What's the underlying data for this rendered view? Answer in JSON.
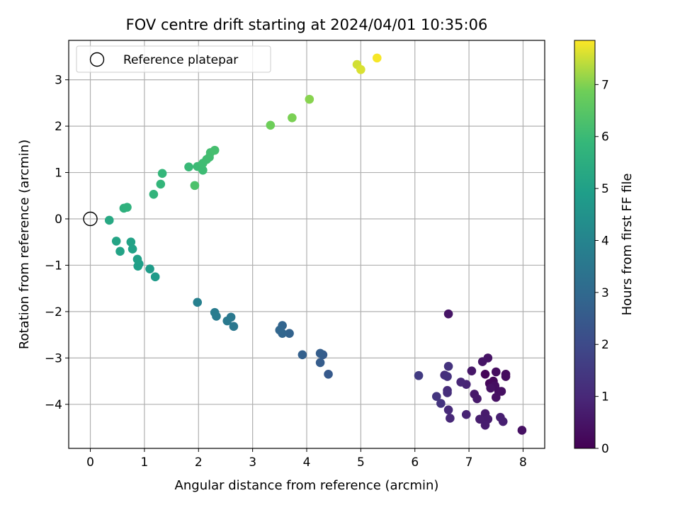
{
  "chart_data": {
    "type": "scatter",
    "title": "FOV centre drift starting at 2024/04/01 10:35:06",
    "xlabel": "Angular distance from reference (arcmin)",
    "ylabel": "Rotation from reference (arcmin)",
    "xlim": [
      -0.4,
      8.4
    ],
    "ylim": [
      -4.95,
      3.85
    ],
    "x_ticks": [
      0,
      1,
      2,
      3,
      4,
      5,
      6,
      7,
      8
    ],
    "y_ticks": [
      -4,
      -3,
      -2,
      -1,
      0,
      1,
      2,
      3
    ],
    "x_tick_labels": [
      "0",
      "1",
      "2",
      "3",
      "4",
      "5",
      "6",
      "7",
      "8"
    ],
    "y_tick_labels": [
      "−4",
      "−3",
      "−2",
      "−1",
      "0",
      "1",
      "2",
      "3"
    ],
    "grid": true,
    "legend": {
      "position": "top-left",
      "entries": [
        {
          "label": "Reference platepar",
          "marker": "open-circle",
          "color": "#000000"
        }
      ]
    },
    "reference_point": {
      "x": 0,
      "y": 0
    },
    "colorbar": {
      "label": "Hours from first FF file",
      "colormap": "viridis",
      "range": [
        0,
        7.85
      ],
      "ticks": [
        0,
        1,
        2,
        3,
        4,
        5,
        6,
        7
      ],
      "tick_labels": [
        "0",
        "1",
        "2",
        "3",
        "4",
        "5",
        "6",
        "7"
      ]
    },
    "points": [
      {
        "x": 7.3,
        "y": -3.35,
        "hours": 0.1
      },
      {
        "x": 7.38,
        "y": -3.55,
        "hours": 0.15
      },
      {
        "x": 7.45,
        "y": -3.5,
        "hours": 0.2
      },
      {
        "x": 7.68,
        "y": -3.35,
        "hours": 0.25
      },
      {
        "x": 7.68,
        "y": -3.4,
        "hours": 0.28
      },
      {
        "x": 7.5,
        "y": -3.3,
        "hours": 0.3
      },
      {
        "x": 7.48,
        "y": -3.6,
        "hours": 0.32
      },
      {
        "x": 7.55,
        "y": -3.72,
        "hours": 0.35
      },
      {
        "x": 7.6,
        "y": -3.72,
        "hours": 0.38
      },
      {
        "x": 7.5,
        "y": -3.85,
        "hours": 0.4
      },
      {
        "x": 7.4,
        "y": -3.65,
        "hours": 0.42
      },
      {
        "x": 7.35,
        "y": -3.0,
        "hours": 0.45
      },
      {
        "x": 7.25,
        "y": -3.08,
        "hours": 0.5
      },
      {
        "x": 7.05,
        "y": -3.28,
        "hours": 0.55
      },
      {
        "x": 7.1,
        "y": -3.78,
        "hours": 0.6
      },
      {
        "x": 7.15,
        "y": -3.88,
        "hours": 0.62
      },
      {
        "x": 7.3,
        "y": -4.2,
        "hours": 0.65
      },
      {
        "x": 7.35,
        "y": -4.32,
        "hours": 0.68
      },
      {
        "x": 7.3,
        "y": -4.45,
        "hours": 0.7
      },
      {
        "x": 7.2,
        "y": -4.32,
        "hours": 0.72
      },
      {
        "x": 7.58,
        "y": -4.28,
        "hours": 0.75
      },
      {
        "x": 7.63,
        "y": -4.37,
        "hours": 0.78
      },
      {
        "x": 7.98,
        "y": -4.56,
        "hours": 0.4
      },
      {
        "x": 6.62,
        "y": -2.05,
        "hours": 0.5
      },
      {
        "x": 6.95,
        "y": -4.22,
        "hours": 0.85
      },
      {
        "x": 6.95,
        "y": -3.57,
        "hours": 0.9
      },
      {
        "x": 6.85,
        "y": -3.52,
        "hours": 0.95
      },
      {
        "x": 6.65,
        "y": -4.3,
        "hours": 1.0
      },
      {
        "x": 6.62,
        "y": -4.12,
        "hours": 1.05
      },
      {
        "x": 6.6,
        "y": -3.7,
        "hours": 1.1
      },
      {
        "x": 6.6,
        "y": -3.75,
        "hours": 1.15
      },
      {
        "x": 6.55,
        "y": -3.37,
        "hours": 1.2
      },
      {
        "x": 6.6,
        "y": -3.4,
        "hours": 1.25
      },
      {
        "x": 6.62,
        "y": -3.18,
        "hours": 1.3
      },
      {
        "x": 6.48,
        "y": -3.98,
        "hours": 1.35
      },
      {
        "x": 6.4,
        "y": -3.83,
        "hours": 1.4
      },
      {
        "x": 6.07,
        "y": -3.38,
        "hours": 1.55
      },
      {
        "x": 4.4,
        "y": -3.35,
        "hours": 2.5
      },
      {
        "x": 4.3,
        "y": -2.93,
        "hours": 2.55
      },
      {
        "x": 4.25,
        "y": -3.1,
        "hours": 2.6
      },
      {
        "x": 4.25,
        "y": -2.9,
        "hours": 2.62
      },
      {
        "x": 3.92,
        "y": -2.93,
        "hours": 2.7
      },
      {
        "x": 3.68,
        "y": -2.47,
        "hours": 2.8
      },
      {
        "x": 3.55,
        "y": -2.3,
        "hours": 2.85
      },
      {
        "x": 3.55,
        "y": -2.47,
        "hours": 2.88
      },
      {
        "x": 3.5,
        "y": -2.4,
        "hours": 2.9
      },
      {
        "x": 2.65,
        "y": -2.32,
        "hours": 3.5
      },
      {
        "x": 2.6,
        "y": -2.12,
        "hours": 3.55
      },
      {
        "x": 2.53,
        "y": -2.2,
        "hours": 3.6
      },
      {
        "x": 2.33,
        "y": -2.1,
        "hours": 3.65
      },
      {
        "x": 2.3,
        "y": -2.02,
        "hours": 3.7
      },
      {
        "x": 1.98,
        "y": -1.8,
        "hours": 3.85
      },
      {
        "x": 1.2,
        "y": -1.25,
        "hours": 4.8
      },
      {
        "x": 1.1,
        "y": -1.08,
        "hours": 4.85
      },
      {
        "x": 0.9,
        "y": -0.97,
        "hours": 4.9
      },
      {
        "x": 0.88,
        "y": -1.02,
        "hours": 4.95
      },
      {
        "x": 0.87,
        "y": -0.87,
        "hours": 5.0
      },
      {
        "x": 0.78,
        "y": -0.65,
        "hours": 5.05
      },
      {
        "x": 0.75,
        "y": -0.5,
        "hours": 5.08
      },
      {
        "x": 0.55,
        "y": -0.7,
        "hours": 5.1
      },
      {
        "x": 0.48,
        "y": -0.48,
        "hours": 5.15
      },
      {
        "x": 0.35,
        "y": -0.03,
        "hours": 5.3
      },
      {
        "x": 0.62,
        "y": 0.23,
        "hours": 5.6
      },
      {
        "x": 0.68,
        "y": 0.25,
        "hours": 5.65
      },
      {
        "x": 1.17,
        "y": 0.53,
        "hours": 5.75
      },
      {
        "x": 1.3,
        "y": 0.75,
        "hours": 5.8
      },
      {
        "x": 1.33,
        "y": 0.98,
        "hours": 5.85
      },
      {
        "x": 1.82,
        "y": 1.12,
        "hours": 5.95
      },
      {
        "x": 1.98,
        "y": 1.13,
        "hours": 6.0
      },
      {
        "x": 2.08,
        "y": 1.05,
        "hours": 6.05
      },
      {
        "x": 2.08,
        "y": 1.2,
        "hours": 6.08
      },
      {
        "x": 2.15,
        "y": 1.28,
        "hours": 6.1
      },
      {
        "x": 2.2,
        "y": 1.33,
        "hours": 6.12
      },
      {
        "x": 2.22,
        "y": 1.43,
        "hours": 6.15
      },
      {
        "x": 2.3,
        "y": 1.48,
        "hours": 6.18
      },
      {
        "x": 1.93,
        "y": 0.72,
        "hours": 6.3
      },
      {
        "x": 3.33,
        "y": 2.02,
        "hours": 6.85
      },
      {
        "x": 3.73,
        "y": 2.18,
        "hours": 6.95
      },
      {
        "x": 4.05,
        "y": 2.58,
        "hours": 7.05
      },
      {
        "x": 4.93,
        "y": 3.33,
        "hours": 7.55
      },
      {
        "x": 5.0,
        "y": 3.22,
        "hours": 7.6
      },
      {
        "x": 5.3,
        "y": 3.47,
        "hours": 7.8
      }
    ]
  }
}
